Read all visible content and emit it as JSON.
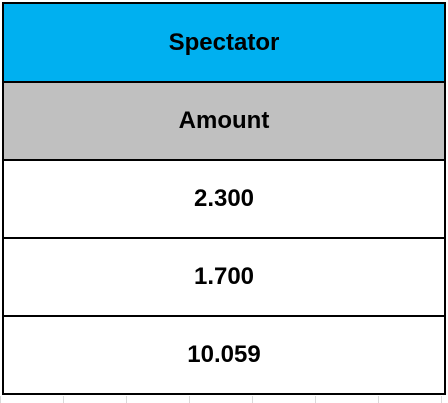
{
  "table": {
    "header": "Spectator",
    "subheader": "Amount",
    "values": [
      "2.300",
      "1.700",
      "10.059"
    ]
  },
  "colors": {
    "header_bg": "#00b0f0",
    "subheader_bg": "#c0c0c0",
    "cell_bg": "#ffffff",
    "border": "#000000"
  }
}
